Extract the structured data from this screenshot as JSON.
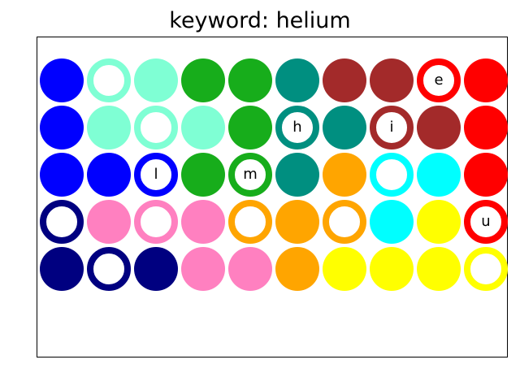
{
  "title": "keyword: helium",
  "colors": {
    "blue": "#0000ff",
    "aquamarine": "#7fffd4",
    "green": "#17ad1b",
    "teal": "#008f80",
    "brown": "#a32a2a",
    "red": "#ff0000",
    "orange": "#ffa500",
    "cyan": "#00ffff",
    "yellow": "#ffff00",
    "navy": "#000080",
    "pink": "#ff80c0"
  },
  "grid": {
    "rows": 5,
    "cols": 10,
    "cells": [
      [
        {
          "color": "blue",
          "style": "filled",
          "letter": ""
        },
        {
          "color": "aquamarine",
          "style": "ring",
          "letter": ""
        },
        {
          "color": "aquamarine",
          "style": "filled",
          "letter": ""
        },
        {
          "color": "green",
          "style": "filled",
          "letter": ""
        },
        {
          "color": "green",
          "style": "filled",
          "letter": ""
        },
        {
          "color": "teal",
          "style": "filled",
          "letter": ""
        },
        {
          "color": "brown",
          "style": "filled",
          "letter": ""
        },
        {
          "color": "brown",
          "style": "filled",
          "letter": ""
        },
        {
          "color": "red",
          "style": "ring",
          "letter": "e"
        },
        {
          "color": "red",
          "style": "filled",
          "letter": ""
        }
      ],
      [
        {
          "color": "blue",
          "style": "filled",
          "letter": ""
        },
        {
          "color": "aquamarine",
          "style": "filled",
          "letter": ""
        },
        {
          "color": "aquamarine",
          "style": "ring",
          "letter": ""
        },
        {
          "color": "aquamarine",
          "style": "filled",
          "letter": ""
        },
        {
          "color": "green",
          "style": "filled",
          "letter": ""
        },
        {
          "color": "teal",
          "style": "ring",
          "letter": "h"
        },
        {
          "color": "teal",
          "style": "filled",
          "letter": ""
        },
        {
          "color": "brown",
          "style": "ring",
          "letter": "i"
        },
        {
          "color": "brown",
          "style": "filled",
          "letter": ""
        },
        {
          "color": "red",
          "style": "filled",
          "letter": ""
        }
      ],
      [
        {
          "color": "blue",
          "style": "filled",
          "letter": ""
        },
        {
          "color": "blue",
          "style": "filled",
          "letter": ""
        },
        {
          "color": "blue",
          "style": "ring",
          "letter": "l"
        },
        {
          "color": "green",
          "style": "filled",
          "letter": ""
        },
        {
          "color": "green",
          "style": "ring",
          "letter": "m"
        },
        {
          "color": "teal",
          "style": "filled",
          "letter": ""
        },
        {
          "color": "orange",
          "style": "filled",
          "letter": ""
        },
        {
          "color": "cyan",
          "style": "ring",
          "letter": ""
        },
        {
          "color": "cyan",
          "style": "filled",
          "letter": ""
        },
        {
          "color": "red",
          "style": "filled",
          "letter": ""
        }
      ],
      [
        {
          "color": "navy",
          "style": "ring",
          "letter": ""
        },
        {
          "color": "pink",
          "style": "filled",
          "letter": ""
        },
        {
          "color": "pink",
          "style": "ring",
          "letter": ""
        },
        {
          "color": "pink",
          "style": "filled",
          "letter": ""
        },
        {
          "color": "orange",
          "style": "ring",
          "letter": ""
        },
        {
          "color": "orange",
          "style": "filled",
          "letter": ""
        },
        {
          "color": "orange",
          "style": "ring",
          "letter": ""
        },
        {
          "color": "cyan",
          "style": "filled",
          "letter": ""
        },
        {
          "color": "yellow",
          "style": "filled",
          "letter": ""
        },
        {
          "color": "red",
          "style": "ring",
          "letter": "u"
        }
      ],
      [
        {
          "color": "navy",
          "style": "filled",
          "letter": ""
        },
        {
          "color": "navy",
          "style": "ring",
          "letter": ""
        },
        {
          "color": "navy",
          "style": "filled",
          "letter": ""
        },
        {
          "color": "pink",
          "style": "filled",
          "letter": ""
        },
        {
          "color": "pink",
          "style": "filled",
          "letter": ""
        },
        {
          "color": "orange",
          "style": "filled",
          "letter": ""
        },
        {
          "color": "yellow",
          "style": "filled",
          "letter": ""
        },
        {
          "color": "yellow",
          "style": "filled",
          "letter": ""
        },
        {
          "color": "yellow",
          "style": "filled",
          "letter": ""
        },
        {
          "color": "yellow",
          "style": "ring",
          "letter": ""
        }
      ]
    ]
  }
}
